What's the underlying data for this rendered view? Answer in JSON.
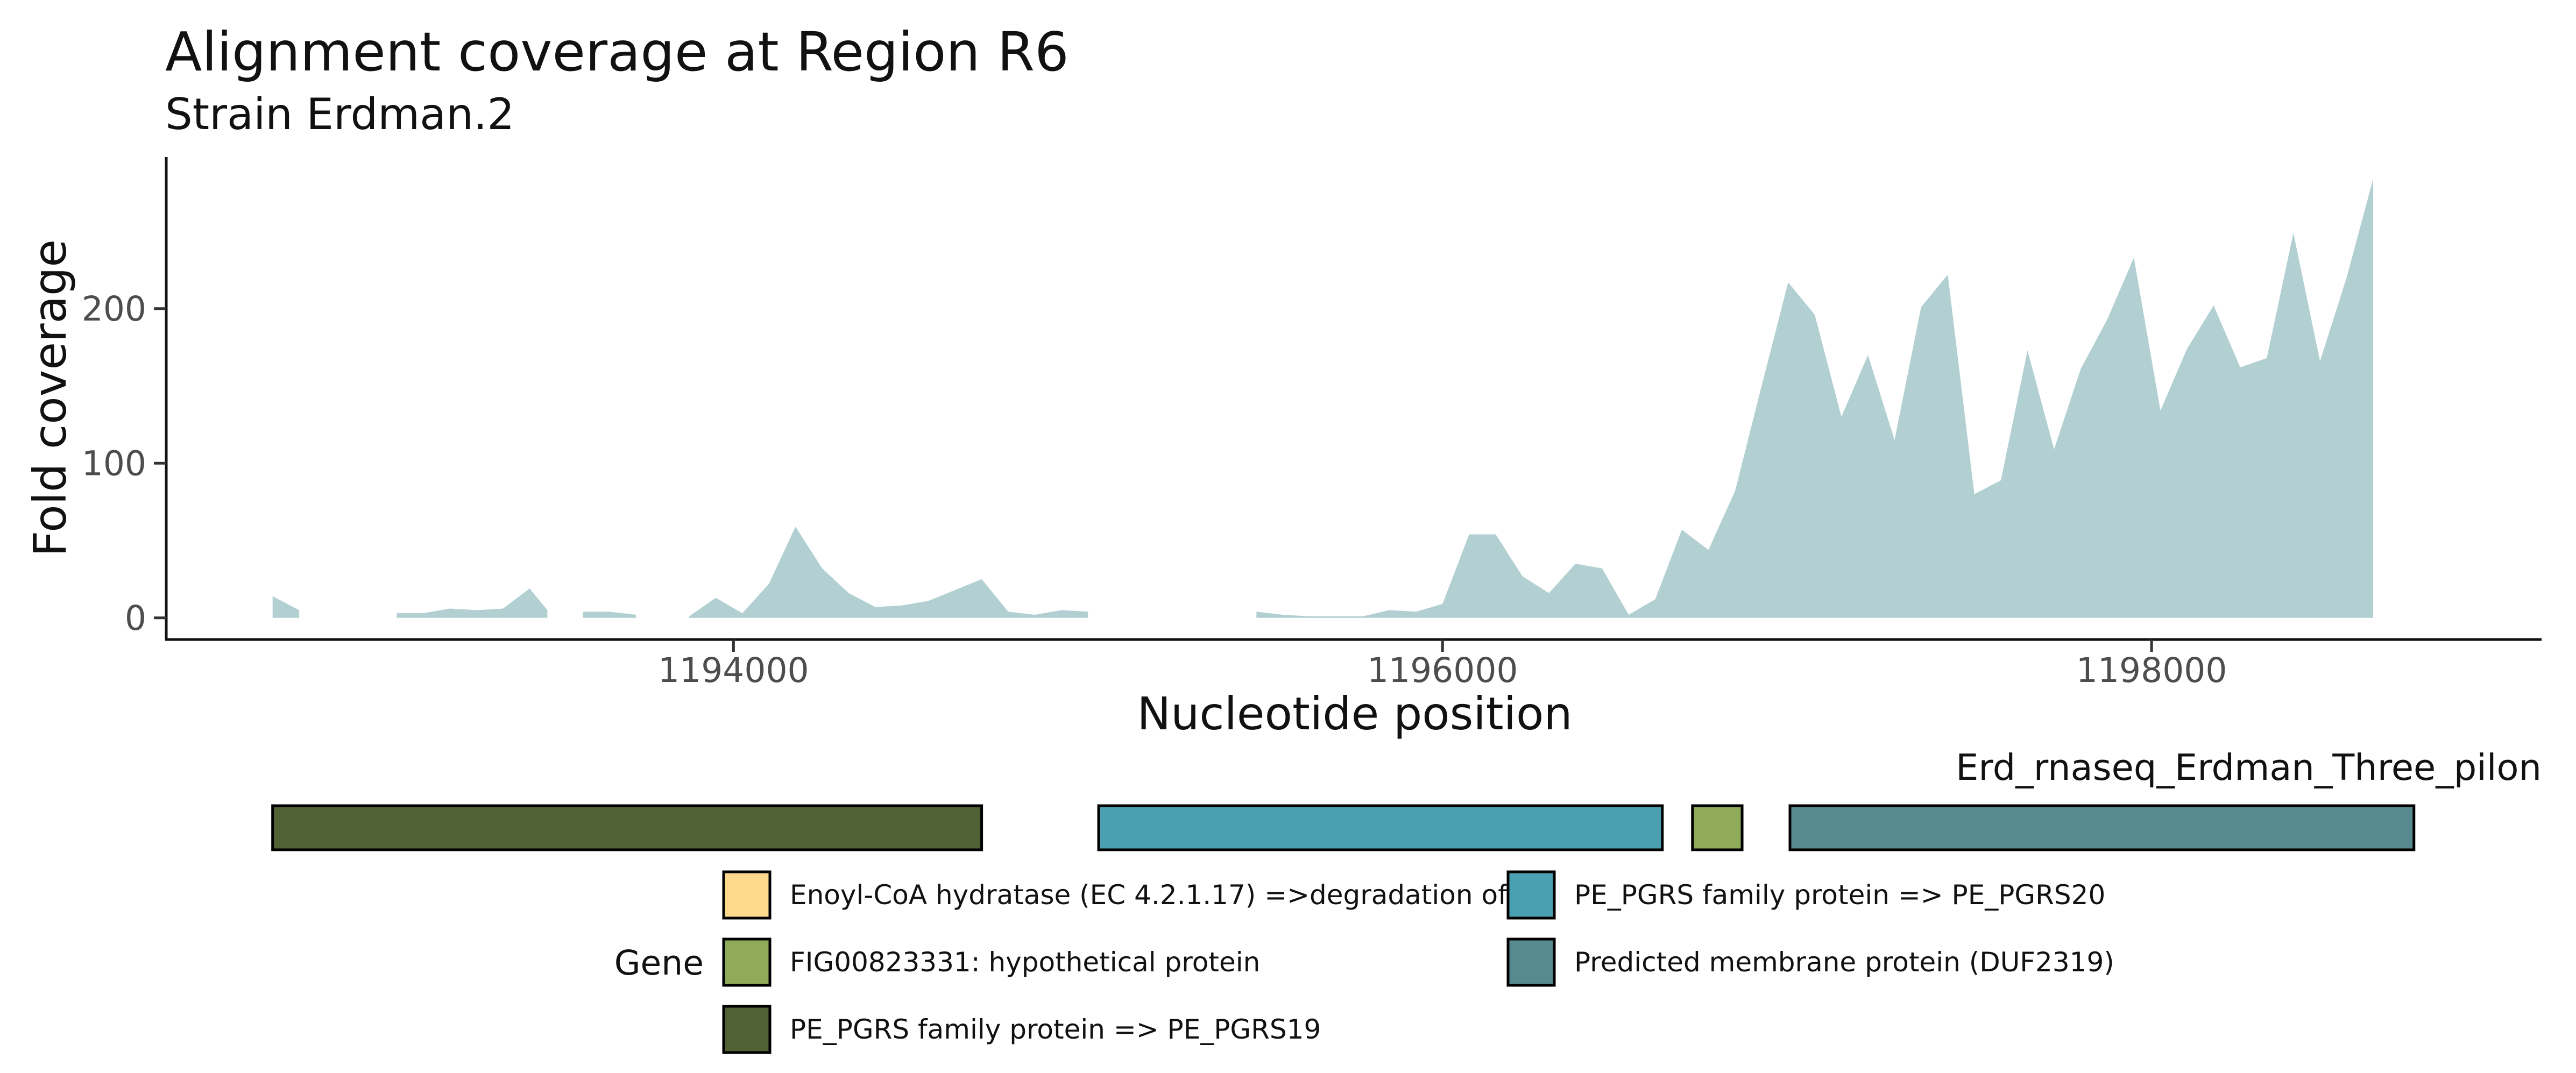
{
  "page": {
    "title": "Alignment coverage at Region R6",
    "subtitle": "Strain Erdman.2"
  },
  "chart_data": {
    "type": "area",
    "title": "Alignment coverage at Region R6",
    "subtitle": "Strain Erdman.2",
    "xlabel": "Nucleotide position",
    "ylabel": "Fold coverage",
    "xlim": [
      1192400,
      1199100
    ],
    "ylim": [
      -14,
      298
    ],
    "x_ticks": [
      1194000,
      1196000,
      1198000
    ],
    "x_tick_labels": [
      "1194000",
      "1196000",
      "1198000"
    ],
    "y_ticks": [
      0,
      100,
      200
    ],
    "y_tick_labels": [
      "0",
      "100",
      "200"
    ],
    "grid": false,
    "fill_color": "#b2d0d2",
    "series": [
      {
        "segments": [
          [
            [
              1192700,
              14
            ],
            [
              1192775,
              5
            ],
            [
              1192775,
              0
            ]
          ],
          [
            [
              1193050,
              3
            ],
            [
              1193125,
              3
            ],
            [
              1193200,
              6
            ],
            [
              1193275,
              5
            ],
            [
              1193350,
              6
            ],
            [
              1193425,
              19
            ],
            [
              1193475,
              5
            ]
          ],
          [
            [
              1193575,
              4
            ],
            [
              1193650,
              4
            ],
            [
              1193725,
              2
            ]
          ],
          [
            [
              1193875,
              1
            ],
            [
              1193950,
              13
            ],
            [
              1194025,
              3
            ],
            [
              1194100,
              22
            ],
            [
              1194175,
              59
            ],
            [
              1194250,
              32
            ],
            [
              1194325,
              16
            ],
            [
              1194400,
              7
            ],
            [
              1194475,
              8
            ],
            [
              1194550,
              11
            ],
            [
              1194625,
              18
            ],
            [
              1194700,
              25
            ],
            [
              1194775,
              4
            ],
            [
              1194850,
              2
            ],
            [
              1194925,
              5
            ],
            [
              1195000,
              4
            ]
          ],
          [
            [
              1195475,
              4
            ],
            [
              1195550,
              2
            ],
            [
              1195625,
              1
            ],
            [
              1195700,
              1
            ],
            [
              1195775,
              1
            ],
            [
              1195850,
              5
            ],
            [
              1195925,
              4
            ],
            [
              1196000,
              9
            ],
            [
              1196075,
              54
            ],
            [
              1196150,
              54
            ],
            [
              1196225,
              27
            ],
            [
              1196300,
              16
            ],
            [
              1196375,
              35
            ],
            [
              1196450,
              32
            ],
            [
              1196525,
              2
            ],
            [
              1196600,
              12
            ],
            [
              1196675,
              57
            ],
            [
              1196750,
              44
            ],
            [
              1196825,
              82
            ],
            [
              1196900,
              150
            ],
            [
              1196975,
              217
            ],
            [
              1197050,
              196
            ],
            [
              1197125,
              130
            ],
            [
              1197200,
              170
            ],
            [
              1197275,
              115
            ],
            [
              1197350,
              201
            ],
            [
              1197425,
              222
            ],
            [
              1197500,
              80
            ],
            [
              1197575,
              89
            ],
            [
              1197650,
              173
            ],
            [
              1197725,
              109
            ],
            [
              1197800,
              161
            ],
            [
              1197875,
              193
            ],
            [
              1197950,
              233
            ],
            [
              1198025,
              134
            ],
            [
              1198100,
              174
            ],
            [
              1198175,
              202
            ],
            [
              1198250,
              162
            ],
            [
              1198325,
              168
            ],
            [
              1198400,
              249
            ],
            [
              1198475,
              166
            ],
            [
              1198550,
              220
            ],
            [
              1198625,
              284
            ]
          ]
        ]
      }
    ],
    "genes": {
      "track_label": "Erd_rnaseq_Erdman_Three_pilon",
      "features": [
        {
          "start": 1192700,
          "end": 1194700,
          "gene": "PE_PGRS family protein => PE_PGRS19"
        },
        {
          "start": 1195030,
          "end": 1196620,
          "gene": "PE_PGRS family protein => PE_PGRS20"
        },
        {
          "start": 1196705,
          "end": 1196845,
          "gene": "FIG00823331: hypothetical protein"
        },
        {
          "start": 1196980,
          "end": 1198740,
          "gene": "Predicted membrane protein (DUF2319)"
        }
      ]
    },
    "legend": {
      "title": "Gene",
      "position": "bottom",
      "items": [
        {
          "label": "Enoyl-CoA hydratase (EC 4.2.1.17) =>degradation of",
          "color": "#fdd98c"
        },
        {
          "label": "FIG00823331: hypothetical protein",
          "color": "#8fab5a"
        },
        {
          "label": "PE_PGRS family protein => PE_PGRS19",
          "color": "#4f6135"
        },
        {
          "label": "PE_PGRS family protein => PE_PGRS20",
          "color": "#4aa0b0"
        },
        {
          "label": "Predicted membrane protein (DUF2319)",
          "color": "#578990"
        }
      ]
    }
  }
}
